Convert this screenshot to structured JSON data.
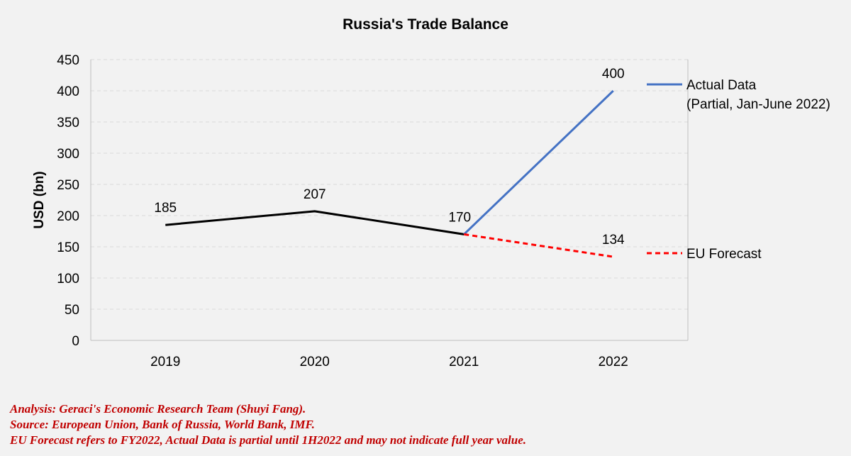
{
  "chart_data": {
    "type": "line",
    "title": "Russia's Trade Balance",
    "ylabel": "USD (bn)",
    "xlabel": "",
    "categories": [
      "2019",
      "2020",
      "2021",
      "2022"
    ],
    "ylim": [
      0,
      450
    ],
    "yticks": [
      0,
      50,
      100,
      150,
      200,
      250,
      300,
      350,
      400,
      450
    ],
    "grid": true,
    "series": [
      {
        "name": "History",
        "legend": false,
        "x": [
          "2019",
          "2020",
          "2021"
        ],
        "values": [
          185,
          207,
          170
        ],
        "labels": [
          "185",
          "207",
          "170"
        ],
        "color": "#000000",
        "dash": "solid"
      },
      {
        "name": "Actual Data",
        "legend_lines": [
          "Actual Data",
          "(Partial, Jan-June 2022)"
        ],
        "x": [
          "2021",
          "2022"
        ],
        "values": [
          170,
          400
        ],
        "labels": [
          "",
          "400"
        ],
        "color": "#4472c4",
        "dash": "solid"
      },
      {
        "name": "EU Forecast",
        "legend_lines": [
          "EU Forecast"
        ],
        "x": [
          "2021",
          "2022"
        ],
        "values": [
          170,
          134
        ],
        "labels": [
          "",
          "134"
        ],
        "color": "#ff0000",
        "dash": "dashed"
      }
    ],
    "legend_placement": "right"
  },
  "footnotes": [
    "Analysis: Geraci's Economic Research Team (Shuyi Fang).",
    "Source: European Union, Bank of Russia, World Bank, IMF.",
    "EU Forecast refers to FY2022, Actual Data is partial until 1H2022 and may not indicate full year value."
  ],
  "colors": {
    "background": "#f2f2f2",
    "gridline": "#d9d9d9",
    "axis": "#bfbfbf",
    "footnote": "#c00000"
  }
}
